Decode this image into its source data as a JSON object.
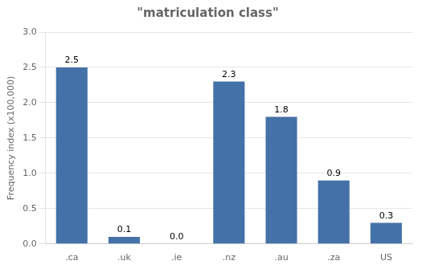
{
  "chart_data": {
    "type": "bar",
    "title": "\"matriculation class\"",
    "categories": [
      ".ca",
      ".uk",
      ".ie",
      ".nz",
      ".au",
      ".za",
      "US"
    ],
    "values": [
      2.5,
      0.1,
      0.0,
      2.3,
      1.8,
      0.9,
      0.3
    ],
    "value_labels": [
      "2.5",
      "0.1",
      "0.0",
      "2.3",
      "1.8",
      "0.9",
      "0.3"
    ],
    "color": "#4472a8",
    "ylabel": "Frequency index (x100,000)",
    "ylim": [
      0,
      3.0
    ],
    "yticks": [
      {
        "value": 0.0,
        "label": "0.0"
      },
      0.5,
      {
        "value": 1.0,
        "label": "1.0"
      },
      1.5,
      {
        "value": 2.0,
        "label": "2.0"
      },
      2.5,
      {
        "value": 3.0,
        "label": "3.0"
      }
    ],
    "grid": true,
    "data_labels": true
  }
}
